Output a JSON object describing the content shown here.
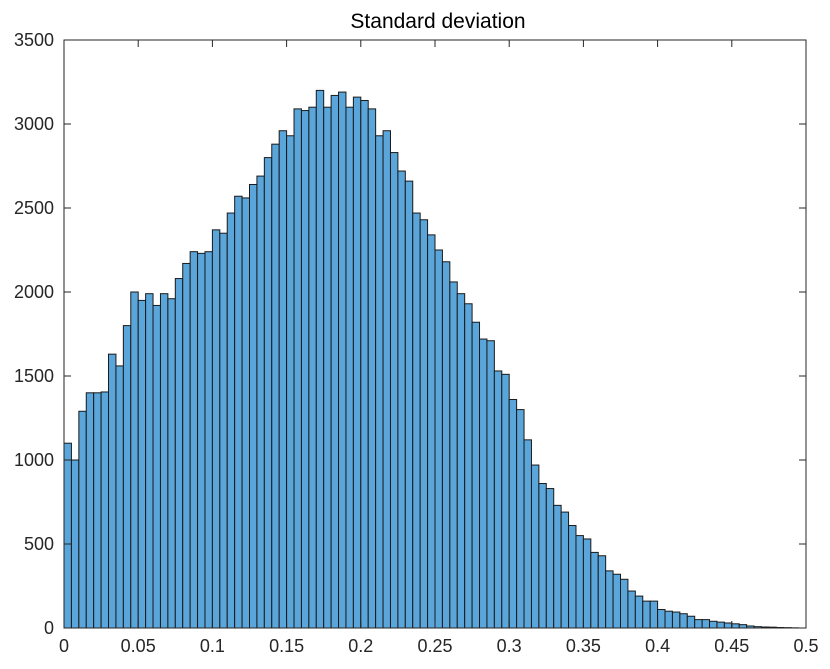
{
  "chart_data": {
    "type": "bar",
    "title": "Standard deviation",
    "xlabel": "",
    "ylabel": "",
    "xlim": [
      0,
      0.5
    ],
    "ylim": [
      0,
      3500
    ],
    "grid": false,
    "bin_width": 0.005,
    "x_ticks": [
      0,
      0.05,
      0.1,
      0.15,
      0.2,
      0.25,
      0.3,
      0.35,
      0.4,
      0.45,
      0.5
    ],
    "x_tick_labels": [
      "0",
      "0.05",
      "0.1",
      "0.15",
      "0.2",
      "0.25",
      "0.3",
      "0.35",
      "0.4",
      "0.45",
      "0.5"
    ],
    "y_ticks": [
      0,
      500,
      1000,
      1500,
      2000,
      2500,
      3000,
      3500
    ],
    "y_tick_labels": [
      "0",
      "500",
      "1000",
      "1500",
      "2000",
      "2500",
      "3000",
      "3500"
    ],
    "bar_color": "#5aa5da",
    "edge_color": "#1a1a1a",
    "values": [
      1100,
      1000,
      1290,
      1400,
      1400,
      1405,
      1630,
      1560,
      1800,
      2000,
      1950,
      1990,
      1920,
      1990,
      1960,
      2080,
      2170,
      2240,
      2230,
      2240,
      2370,
      2350,
      2470,
      2570,
      2560,
      2640,
      2690,
      2800,
      2880,
      2960,
      2930,
      3090,
      3080,
      3100,
      3200,
      3100,
      3170,
      3190,
      3100,
      3160,
      3140,
      3090,
      2930,
      2960,
      2830,
      2720,
      2660,
      2470,
      2430,
      2340,
      2250,
      2180,
      2060,
      1990,
      1930,
      1820,
      1720,
      1710,
      1530,
      1510,
      1360,
      1300,
      1120,
      970,
      860,
      830,
      730,
      690,
      610,
      550,
      530,
      450,
      430,
      340,
      320,
      290,
      220,
      190,
      160,
      160,
      110,
      100,
      95,
      85,
      70,
      50,
      50,
      40,
      35,
      30,
      25,
      20,
      12,
      8,
      6,
      5,
      3,
      2,
      1,
      0
    ]
  }
}
